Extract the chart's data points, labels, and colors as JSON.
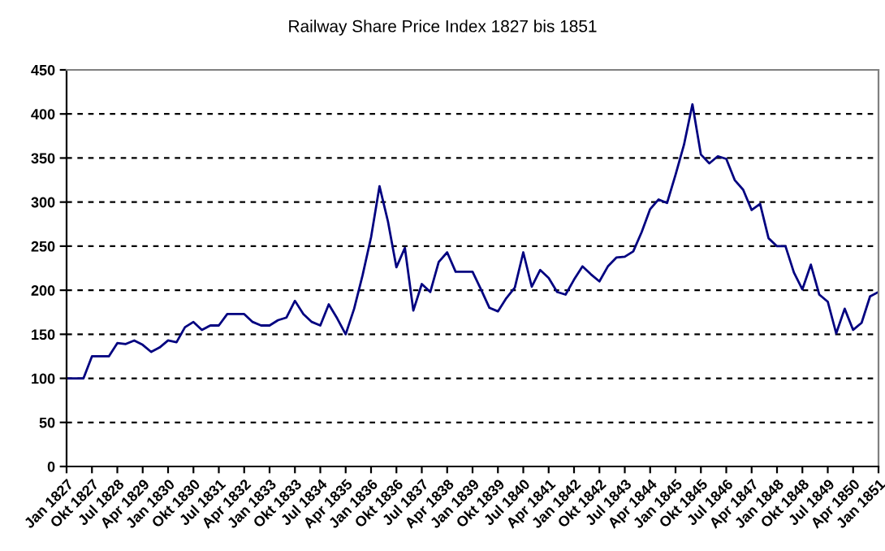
{
  "chart_data": {
    "type": "line",
    "title": "Railway Share Price Index 1827 bis 1851",
    "categories": [
      "Jan 1827",
      null,
      null,
      "Okt 1827",
      null,
      null,
      "Jul 1828",
      null,
      null,
      "Apr 1829",
      null,
      null,
      "Jan 1830",
      null,
      null,
      "Okt 1830",
      null,
      null,
      "Jul 1831",
      null,
      null,
      "Apr 1832",
      null,
      null,
      "Jan 1833",
      null,
      null,
      "Okt 1833",
      null,
      null,
      "Jul 1834",
      null,
      null,
      "Apr 1835",
      null,
      null,
      "Jan 1836",
      null,
      null,
      "Okt 1836",
      null,
      null,
      "Jul 1837",
      null,
      null,
      "Apr 1838",
      null,
      null,
      "Jan 1839",
      null,
      null,
      "Okt 1839",
      null,
      null,
      "Jul 1840",
      null,
      null,
      "Apr 1841",
      null,
      null,
      "Jan 1842",
      null,
      null,
      "Okt 1842",
      null,
      null,
      "Jul 1843",
      null,
      null,
      "Apr 1844",
      null,
      null,
      "Jan 1845",
      null,
      null,
      "Okt 1845",
      null,
      null,
      "Jul 1846",
      null,
      null,
      "Apr 1847",
      null,
      null,
      "Jan 1848",
      null,
      null,
      "Okt 1848",
      null,
      null,
      "Jul 1849",
      null,
      null,
      "Apr 1850",
      null,
      null,
      "Jan 1851"
    ],
    "series": [
      {
        "color": "#000080",
        "values": [
          100,
          100,
          100,
          125,
          125,
          125,
          140,
          139,
          143,
          138,
          130,
          135,
          143,
          141,
          158,
          164,
          155,
          160,
          160,
          173,
          173,
          173,
          164,
          160,
          160,
          166,
          169,
          188,
          173,
          164,
          160,
          184,
          168,
          150,
          179,
          217,
          260,
          318,
          278,
          226,
          248,
          177,
          207,
          198,
          232,
          243,
          221,
          221,
          221,
          201,
          180,
          176,
          191,
          203,
          243,
          204,
          223,
          214,
          198,
          195,
          212,
          227,
          218,
          210,
          227,
          237,
          238,
          244,
          266,
          292,
          303,
          299,
          331,
          365,
          411,
          354,
          344,
          352,
          349,
          325,
          314,
          291,
          298,
          259,
          250,
          250,
          220,
          201,
          229,
          195,
          187,
          151,
          179,
          155,
          163,
          193,
          198
        ]
      }
    ],
    "ylim": [
      0,
      450
    ],
    "yticks": [
      0,
      50,
      100,
      150,
      200,
      250,
      300,
      350,
      400,
      450
    ],
    "grid": "y",
    "line_style": "solid",
    "marker": "none",
    "legend": false
  }
}
